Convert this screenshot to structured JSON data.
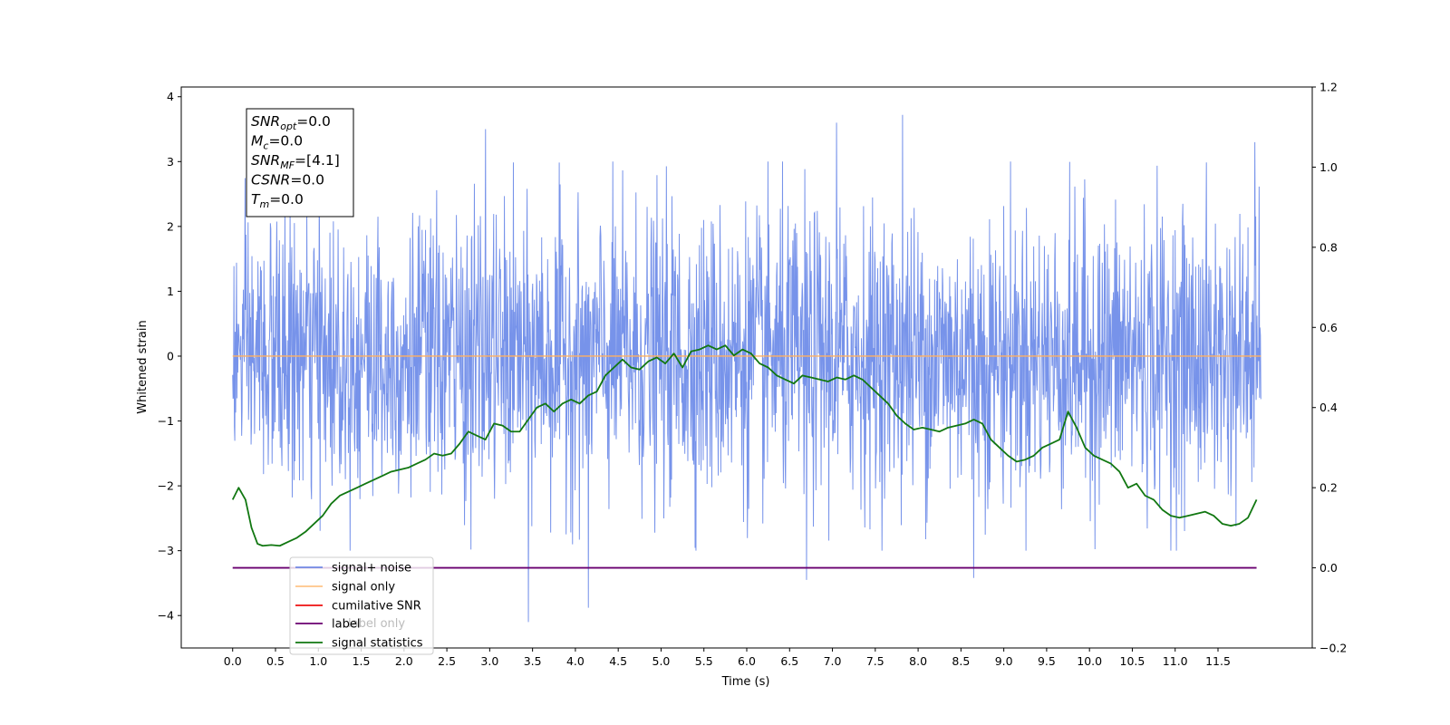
{
  "chart_data": {
    "type": "line",
    "xlabel": "Time (s)",
    "ylabel": "Whitened strain",
    "xlim": [
      -0.6,
      12.6
    ],
    "ylim": [
      -4.5,
      4.15
    ],
    "y2lim": [
      -0.2,
      1.2
    ],
    "x_ticks": [
      "0.0",
      "0.5",
      "1.0",
      "1.5",
      "2.0",
      "2.5",
      "3.0",
      "3.5",
      "4.0",
      "4.5",
      "5.0",
      "5.5",
      "6.0",
      "6.5",
      "7.0",
      "7.5",
      "8.0",
      "8.5",
      "9.0",
      "9.5",
      "10.0",
      "10.5",
      "11.0",
      "11.5"
    ],
    "y_ticks": [
      "4",
      "3",
      "2",
      "1",
      "0",
      "−1",
      "−2",
      "−3",
      "−4"
    ],
    "y2_ticks": [
      "1.2",
      "1.0",
      "0.8",
      "0.6",
      "0.4",
      "0.2",
      "0.0",
      "−0.2"
    ],
    "info_box": [
      {
        "main": "SNR",
        "sub": "opt",
        "value": "=0.0"
      },
      {
        "main": "M",
        "sub": "c",
        "value": "=0.0"
      },
      {
        "main": "SNR",
        "sub": "MF",
        "value": "=[4.1]"
      },
      {
        "main": "CSNR",
        "sub": "",
        "value": "=0.0"
      },
      {
        "main": "T",
        "sub": "m",
        "value": "=0.0"
      }
    ],
    "legend": {
      "placement": "lower-left",
      "entries": [
        "signal+ noise",
        "signal only",
        "cumilative SNR",
        "label",
        "label only",
        "signal statistics"
      ]
    },
    "series": [
      {
        "name": "signal+ noise",
        "axis": "left",
        "color": "#4a6fe3",
        "x_range": [
          0.0,
          12.0
        ],
        "n_points": 2400,
        "amplitude": {
          "x": [
            0.0,
            0.3,
            1.0,
            2.0,
            3.0,
            4.0,
            5.0,
            6.0,
            7.0,
            8.0,
            9.0,
            10.0,
            11.0,
            12.0
          ],
          "y": [
            0.85,
            1.0,
            1.05,
            1.08,
            1.1,
            1.1,
            1.12,
            1.1,
            1.1,
            1.08,
            1.08,
            1.1,
            1.12,
            1.05
          ]
        },
        "peaks": [
          {
            "x": 2.95,
            "y": 3.5
          },
          {
            "x": 3.45,
            "y": -4.1
          },
          {
            "x": 4.15,
            "y": -3.88
          },
          {
            "x": 6.7,
            "y": -3.45
          },
          {
            "x": 7.05,
            "y": 3.6
          },
          {
            "x": 7.82,
            "y": 3.72
          },
          {
            "x": 8.65,
            "y": -3.42
          },
          {
            "x": 11.93,
            "y": 3.3
          }
        ]
      },
      {
        "name": "signal only",
        "axis": "left",
        "color": "#ffb060",
        "x": [
          0.0,
          12.0
        ],
        "y": [
          0.0,
          0.0
        ]
      },
      {
        "name": "label",
        "axis": "right",
        "color": "#6a0070",
        "x": [
          0.0,
          11.95
        ],
        "y": [
          0.0,
          0.0
        ]
      },
      {
        "name": "signal statistics",
        "axis": "right",
        "color": "#117711",
        "x": [
          0.0,
          0.07,
          0.15,
          0.22,
          0.29,
          0.35,
          0.45,
          0.55,
          0.65,
          0.75,
          0.85,
          0.95,
          1.05,
          1.15,
          1.25,
          1.35,
          1.45,
          1.55,
          1.65,
          1.75,
          1.85,
          1.95,
          2.05,
          2.15,
          2.25,
          2.35,
          2.45,
          2.55,
          2.65,
          2.75,
          2.85,
          2.95,
          3.05,
          3.15,
          3.25,
          3.35,
          3.45,
          3.55,
          3.65,
          3.75,
          3.85,
          3.95,
          4.05,
          4.15,
          4.25,
          4.35,
          4.45,
          4.55,
          4.65,
          4.75,
          4.85,
          4.95,
          5.05,
          5.15,
          5.25,
          5.35,
          5.45,
          5.55,
          5.65,
          5.75,
          5.85,
          5.95,
          6.05,
          6.15,
          6.25,
          6.35,
          6.45,
          6.55,
          6.65,
          6.75,
          6.85,
          6.95,
          7.05,
          7.15,
          7.25,
          7.35,
          7.45,
          7.55,
          7.65,
          7.75,
          7.85,
          7.95,
          8.05,
          8.15,
          8.25,
          8.35,
          8.45,
          8.55,
          8.65,
          8.75,
          8.85,
          8.95,
          9.05,
          9.15,
          9.25,
          9.35,
          9.45,
          9.55,
          9.65,
          9.75,
          9.85,
          9.95,
          10.05,
          10.15,
          10.25,
          10.35,
          10.45,
          10.55,
          10.65,
          10.75,
          10.85,
          10.95,
          11.05,
          11.15,
          11.25,
          11.35,
          11.45,
          11.55,
          11.65,
          11.75,
          11.85,
          11.95
        ],
        "y": [
          0.17,
          0.2,
          0.17,
          0.1,
          0.06,
          0.055,
          0.057,
          0.055,
          0.065,
          0.075,
          0.09,
          0.11,
          0.13,
          0.16,
          0.18,
          0.19,
          0.2,
          0.21,
          0.22,
          0.23,
          0.24,
          0.245,
          0.25,
          0.26,
          0.27,
          0.285,
          0.28,
          0.285,
          0.31,
          0.34,
          0.33,
          0.32,
          0.36,
          0.355,
          0.34,
          0.34,
          0.37,
          0.4,
          0.41,
          0.39,
          0.41,
          0.42,
          0.41,
          0.43,
          0.44,
          0.48,
          0.5,
          0.52,
          0.5,
          0.495,
          0.515,
          0.525,
          0.51,
          0.535,
          0.5,
          0.54,
          0.545,
          0.555,
          0.545,
          0.555,
          0.53,
          0.545,
          0.535,
          0.51,
          0.5,
          0.48,
          0.47,
          0.46,
          0.48,
          0.475,
          0.47,
          0.465,
          0.475,
          0.47,
          0.48,
          0.47,
          0.45,
          0.43,
          0.41,
          0.38,
          0.36,
          0.345,
          0.35,
          0.345,
          0.34,
          0.35,
          0.355,
          0.36,
          0.37,
          0.36,
          0.32,
          0.3,
          0.28,
          0.265,
          0.27,
          0.28,
          0.3,
          0.31,
          0.32,
          0.39,
          0.35,
          0.3,
          0.28,
          0.27,
          0.26,
          0.24,
          0.2,
          0.21,
          0.18,
          0.17,
          0.145,
          0.13,
          0.125,
          0.13,
          0.135,
          0.14,
          0.13,
          0.11,
          0.105,
          0.11,
          0.125,
          0.17
        ]
      }
    ]
  }
}
